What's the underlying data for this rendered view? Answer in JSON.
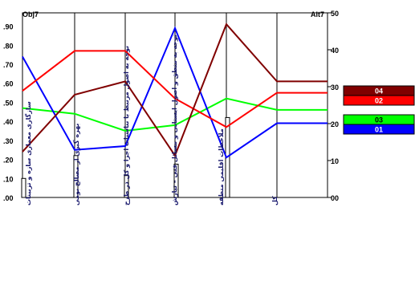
{
  "chart_data": {
    "type": "line",
    "left_axis_title": "Obj7",
    "right_axis_title": "Alt7",
    "left_ticks": [
      ".00",
      ".10",
      ".20",
      ".30",
      ".40",
      ".50",
      ".60",
      ".70",
      ".80",
      ".90"
    ],
    "right_ticks": [
      "00",
      "10",
      "20",
      "30",
      "40",
      "50"
    ],
    "ylim_left": [
      0,
      0.97
    ],
    "ylim_right": [
      0,
      50
    ],
    "categories": [
      "سازگاری معماری سازه و تزیینات",
      "بهره گیری از مصالح بومی",
      "توجه به اصول مرتبط با تناسبات اجزا و کل در طرح",
      "توجه به منطق و اصول ایستایی و مسائل فنی – تیارش",
      "ملاحظات اقلیمی منطقه",
      "کل"
    ],
    "weights": [
      0.1,
      0.22,
      0.115,
      0.175,
      0.42,
      0
    ],
    "series": [
      {
        "name": "04",
        "color": "#800000",
        "values": [
          0.24,
          0.54,
          0.61,
          0.22,
          0.91,
          0.61
        ]
      },
      {
        "name": "02",
        "color": "#ff0000",
        "values": [
          0.56,
          0.77,
          0.77,
          0.52,
          0.37,
          0.55
        ]
      },
      {
        "name": "03",
        "color": "#00ff00",
        "values": [
          0.47,
          0.44,
          0.35,
          0.38,
          0.52,
          0.46
        ]
      },
      {
        "name": "01",
        "color": "#0000ff",
        "values": [
          0.74,
          0.25,
          0.27,
          0.89,
          0.21,
          0.39
        ]
      }
    ],
    "grid": false,
    "legend_position": "right"
  }
}
